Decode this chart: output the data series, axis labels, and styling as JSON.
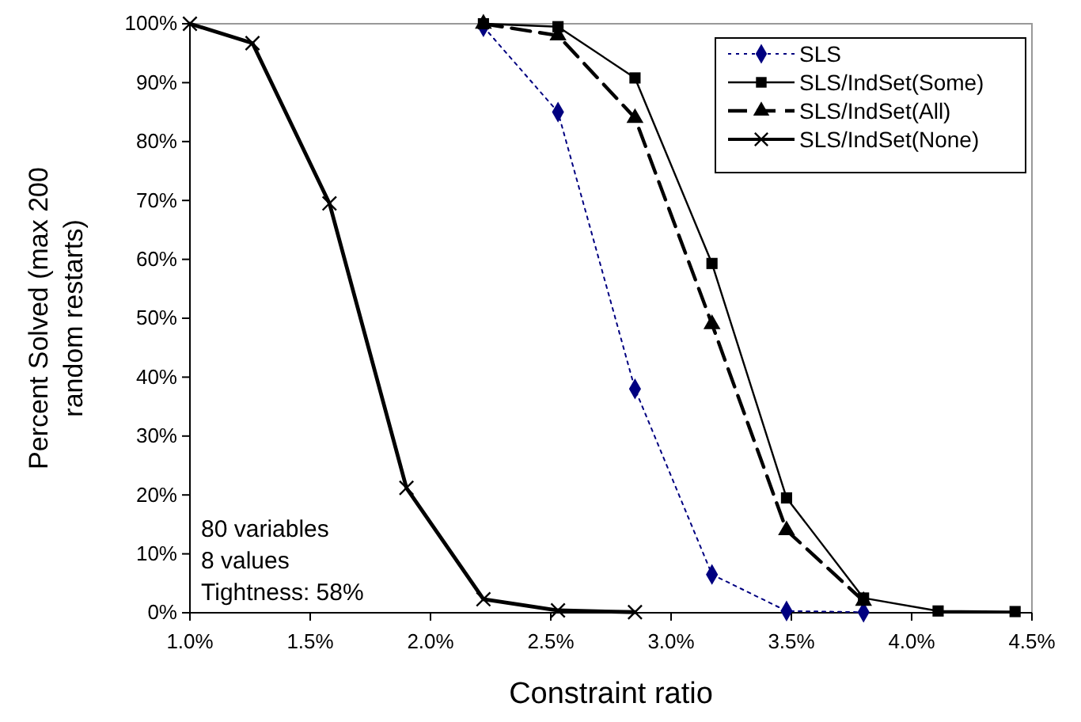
{
  "chart_data": {
    "type": "line",
    "xlabel": "Constraint ratio",
    "ylabel": "Percent Solved (max 200 random restarts)",
    "xlim": [
      1.0,
      4.5
    ],
    "xticks": [
      {
        "value": 1.0,
        "label": "1.0%"
      },
      {
        "value": 1.5,
        "label": "1.5%"
      },
      {
        "value": 2.0,
        "label": "2.0%"
      },
      {
        "value": 2.5,
        "label": "2.5%"
      },
      {
        "value": 3.0,
        "label": "3.0%"
      },
      {
        "value": 3.5,
        "label": "3.5%"
      },
      {
        "value": 4.0,
        "label": "4.0%"
      },
      {
        "value": 4.5,
        "label": "4.5%"
      }
    ],
    "ylim": [
      0,
      100
    ],
    "yticks": [
      {
        "value": 0,
        "label": "0%"
      },
      {
        "value": 10,
        "label": "10%"
      },
      {
        "value": 20,
        "label": "20%"
      },
      {
        "value": 30,
        "label": "30%"
      },
      {
        "value": 40,
        "label": "40%"
      },
      {
        "value": 50,
        "label": "50%"
      },
      {
        "value": 60,
        "label": "60%"
      },
      {
        "value": 70,
        "label": "70%"
      },
      {
        "value": 80,
        "label": "80%"
      },
      {
        "value": 90,
        "label": "90%"
      },
      {
        "value": 100,
        "label": "100%"
      }
    ],
    "grid": false,
    "legend": "top right",
    "annotations": [
      "80 variables\n8 values\nTightness: 58%"
    ],
    "series": [
      {
        "name": "SLS",
        "color": "#000080",
        "marker": "diamond",
        "line_style": "dotted",
        "x": [
          2.22,
          2.53,
          2.85,
          3.17,
          3.48,
          3.8
        ],
        "values": [
          99.5,
          85,
          38,
          6.5,
          0.3,
          0.1
        ]
      },
      {
        "name": "SLS/IndSet(Some)",
        "color": "#000000",
        "marker": "square",
        "line_style": "solid",
        "x": [
          2.22,
          2.53,
          2.85,
          3.17,
          3.48,
          3.8,
          4.11,
          4.43
        ],
        "values": [
          100,
          99.5,
          90.8,
          59.3,
          19.5,
          2.5,
          0.3,
          0.2
        ]
      },
      {
        "name": "SLS/IndSet(All)",
        "color": "#000000",
        "marker": "triangle",
        "line_style": "dashed",
        "x": [
          2.22,
          2.53,
          2.85,
          3.17,
          3.48,
          3.8
        ],
        "values": [
          100,
          98,
          84,
          49,
          14,
          2
        ]
      },
      {
        "name": "SLS/IndSet(None)",
        "color": "#000000",
        "marker": "cross",
        "line_style": "solid",
        "x": [
          1.0,
          1.26,
          1.58,
          1.9,
          2.22,
          2.53,
          2.85
        ],
        "values": [
          100,
          96.7,
          69.5,
          21.2,
          2.3,
          0.4,
          0.1
        ]
      }
    ]
  }
}
